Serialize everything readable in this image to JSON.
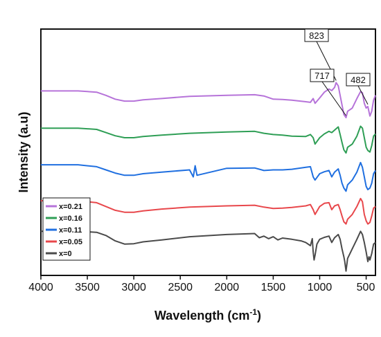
{
  "chart_data": {
    "type": "line",
    "title": "",
    "xlabel": "Wavelength (cm",
    "xlabel_sup": "-1",
    "xlabel_close": ")",
    "ylabel": "Intensity (a.u)",
    "xlim": [
      4000,
      400
    ],
    "x_reversed": true,
    "x_ticks": [
      4000,
      3500,
      3000,
      2500,
      2000,
      1500,
      1000,
      500
    ],
    "grid": false,
    "legend_position": "bottom-left",
    "y_ticks_shown": false,
    "series": [
      {
        "name": "x=0.21",
        "color": "#b673d9",
        "offset": 4,
        "x": [
          4000,
          3600,
          3400,
          3300,
          3200,
          3100,
          3000,
          2900,
          2700,
          2400,
          2000,
          1700,
          1600,
          1500,
          1400,
          1300,
          1150,
          1100,
          1070,
          1050,
          1000,
          950,
          900,
          870,
          840,
          823,
          800,
          780,
          760,
          740,
          717,
          700,
          650,
          600,
          560,
          540,
          520,
          500,
          482,
          460,
          440,
          420,
          400
        ],
        "y": [
          0.84,
          0.84,
          0.8,
          0.7,
          0.58,
          0.52,
          0.52,
          0.56,
          0.6,
          0.67,
          0.7,
          0.72,
          0.68,
          0.58,
          0.57,
          0.55,
          0.5,
          0.48,
          0.6,
          0.45,
          0.62,
          0.8,
          0.9,
          0.85,
          0.95,
          1.1,
          1.0,
          0.7,
          0.4,
          0.1,
          0.0,
          0.2,
          0.3,
          0.6,
          0.82,
          0.78,
          0.45,
          0.3,
          0.35,
          0.05,
          0.2,
          0.55,
          0.7
        ]
      },
      {
        "name": "x=0.16",
        "color": "#2e9e55",
        "offset": 3,
        "x": [
          4000,
          3600,
          3400,
          3300,
          3200,
          3100,
          3000,
          2900,
          2700,
          2400,
          2000,
          1700,
          1600,
          1500,
          1400,
          1300,
          1150,
          1100,
          1070,
          1050,
          1000,
          950,
          900,
          870,
          840,
          800,
          780,
          760,
          740,
          717,
          700,
          650,
          600,
          560,
          540,
          520,
          500,
          482,
          460,
          440,
          420,
          400
        ],
        "y": [
          0.8,
          0.8,
          0.76,
          0.66,
          0.56,
          0.5,
          0.5,
          0.54,
          0.58,
          0.64,
          0.68,
          0.7,
          0.64,
          0.6,
          0.58,
          0.55,
          0.54,
          0.6,
          0.5,
          0.3,
          0.5,
          0.62,
          0.7,
          0.66,
          0.74,
          0.84,
          0.6,
          0.35,
          0.12,
          0.02,
          0.2,
          0.3,
          0.55,
          0.86,
          0.8,
          0.5,
          0.2,
          0.1,
          0.05,
          0.25,
          0.55,
          0.62
        ]
      },
      {
        "name": "x=0.11",
        "color": "#1f6fe0",
        "offset": 2,
        "x": [
          4000,
          3600,
          3400,
          3300,
          3200,
          3100,
          3000,
          2900,
          2700,
          2400,
          2360,
          2340,
          2320,
          2000,
          1700,
          1600,
          1500,
          1400,
          1300,
          1150,
          1100,
          1070,
          1050,
          1000,
          950,
          900,
          870,
          840,
          800,
          780,
          760,
          740,
          717,
          700,
          650,
          600,
          560,
          540,
          520,
          500,
          482,
          460,
          440,
          420,
          400
        ],
        "y": [
          0.78,
          0.78,
          0.72,
          0.62,
          0.52,
          0.45,
          0.45,
          0.5,
          0.55,
          0.62,
          0.4,
          0.75,
          0.45,
          0.67,
          0.68,
          0.6,
          0.62,
          0.62,
          0.64,
          0.7,
          0.72,
          0.4,
          0.3,
          0.5,
          0.56,
          0.6,
          0.4,
          0.55,
          0.65,
          0.45,
          0.2,
          0.05,
          -0.05,
          0.15,
          0.3,
          0.55,
          0.85,
          0.7,
          0.4,
          0.1,
          0.0,
          0.05,
          0.2,
          0.5,
          0.6
        ]
      },
      {
        "name": "x=0.05",
        "color": "#e8474b",
        "offset": 1,
        "x": [
          4000,
          3600,
          3400,
          3300,
          3200,
          3100,
          3000,
          2900,
          2700,
          2400,
          2000,
          1700,
          1600,
          1500,
          1400,
          1300,
          1150,
          1100,
          1070,
          1050,
          1000,
          950,
          900,
          870,
          840,
          800,
          780,
          760,
          740,
          717,
          700,
          650,
          600,
          560,
          540,
          520,
          500,
          482,
          460,
          440,
          420,
          400
        ],
        "y": [
          0.78,
          0.78,
          0.72,
          0.6,
          0.48,
          0.42,
          0.42,
          0.46,
          0.52,
          0.58,
          0.62,
          0.64,
          0.58,
          0.54,
          0.55,
          0.57,
          0.62,
          0.66,
          0.5,
          0.35,
          0.6,
          0.7,
          0.72,
          0.5,
          0.62,
          0.66,
          0.5,
          0.3,
          0.12,
          0.05,
          0.2,
          0.35,
          0.6,
          0.85,
          0.75,
          0.35,
          0.15,
          0.05,
          0.1,
          0.3,
          0.55,
          0.6
        ]
      },
      {
        "name": "x=0",
        "color": "#4a4a4a",
        "offset": 0,
        "x": [
          4000,
          3600,
          3400,
          3300,
          3200,
          3100,
          3000,
          2900,
          2700,
          2400,
          2000,
          1700,
          1650,
          1600,
          1550,
          1500,
          1450,
          1400,
          1300,
          1200,
          1150,
          1100,
          1080,
          1070,
          1060,
          1050,
          1030,
          1000,
          950,
          900,
          870,
          840,
          800,
          780,
          760,
          740,
          730,
          717,
          700,
          650,
          600,
          560,
          540,
          520,
          500,
          482,
          470,
          460,
          440,
          420,
          400
        ],
        "y": [
          0.95,
          0.95,
          0.92,
          0.82,
          0.65,
          0.55,
          0.56,
          0.62,
          0.68,
          0.78,
          0.85,
          0.88,
          0.75,
          0.8,
          0.72,
          0.78,
          0.68,
          0.74,
          0.7,
          0.65,
          0.6,
          0.5,
          0.72,
          0.3,
          0.05,
          0.2,
          0.55,
          0.7,
          0.76,
          0.8,
          0.6,
          0.75,
          0.85,
          0.7,
          0.4,
          0.15,
          0.0,
          -0.3,
          0.1,
          0.4,
          0.7,
          0.95,
          0.85,
          0.6,
          0.3,
          0.0,
          0.15,
          0.05,
          0.25,
          0.55,
          0.6
        ]
      }
    ],
    "annotations": [
      {
        "text": "823",
        "x": 823
      },
      {
        "text": "717",
        "x": 717
      },
      {
        "text": "482",
        "x": 482
      }
    ]
  }
}
